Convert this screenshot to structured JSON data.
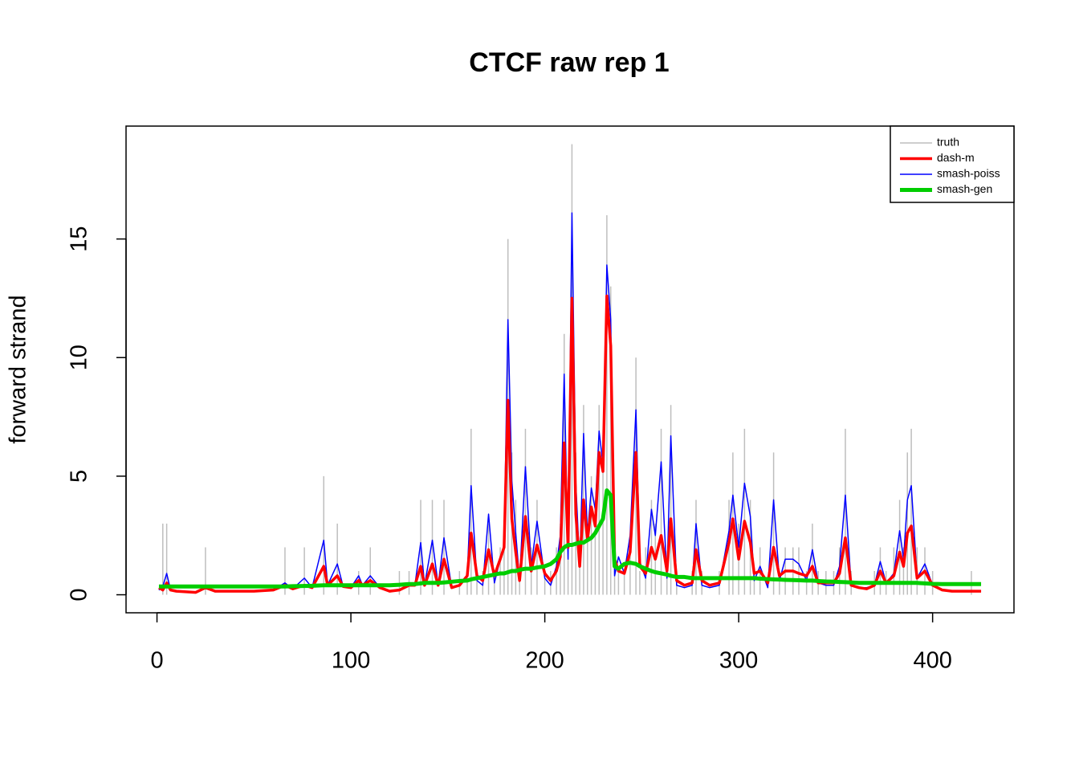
{
  "chart_data": {
    "type": "line",
    "title": "CTCF raw rep 1",
    "y_label": "forward strand",
    "x": [
      1,
      3,
      5,
      7,
      10,
      20,
      25,
      30,
      40,
      50,
      60,
      66,
      70,
      76,
      80,
      86,
      88,
      93,
      96,
      100,
      104,
      106,
      110,
      115,
      120,
      125,
      130,
      133,
      136,
      138,
      142,
      145,
      148,
      152,
      156,
      160,
      162,
      165,
      168,
      171,
      174,
      177,
      179,
      181,
      183,
      185,
      187,
      190,
      193,
      196,
      200,
      203,
      206,
      208,
      210,
      212,
      214,
      216,
      218,
      220,
      222,
      224,
      226,
      228,
      230,
      232,
      234,
      236,
      238,
      241,
      244,
      247,
      249,
      252,
      255,
      257,
      260,
      263,
      265,
      268,
      272,
      276,
      278,
      281,
      285,
      290,
      295,
      297,
      300,
      303,
      306,
      308,
      311,
      315,
      318,
      321,
      324,
      328,
      331,
      335,
      338,
      341,
      345,
      349,
      352,
      355,
      358,
      362,
      366,
      370,
      373,
      376,
      380,
      383,
      385,
      387,
      389,
      392,
      396,
      400,
      405,
      410,
      415,
      420,
      425
    ],
    "series": [
      {
        "name": "truth",
        "color": "#bebebe",
        "plot_type": "h",
        "values": [
          0,
          3,
          3,
          0,
          0,
          0,
          2,
          0,
          0,
          0,
          0,
          2,
          0,
          2,
          0,
          5,
          0,
          3,
          0,
          0,
          1,
          0,
          2,
          0,
          0,
          1,
          1,
          0,
          4,
          0,
          4,
          0,
          4,
          0,
          1,
          1,
          7,
          1,
          1,
          3,
          1,
          2,
          3,
          15,
          6,
          4,
          1,
          7,
          2,
          4,
          1,
          1,
          2,
          3,
          11,
          3,
          19,
          6,
          2,
          8,
          3,
          5,
          4,
          8,
          6,
          16,
          13,
          1,
          1,
          1,
          2,
          10,
          1,
          2,
          4,
          3,
          7,
          1,
          8,
          1,
          0,
          1,
          4,
          1,
          0,
          1,
          4,
          6,
          3,
          7,
          4,
          1,
          2,
          0,
          6,
          1,
          2,
          2,
          2,
          1,
          3,
          1,
          1,
          1,
          2,
          7,
          1,
          0,
          0,
          1,
          2,
          1,
          2,
          4,
          2,
          6,
          7,
          2,
          2,
          1,
          0,
          0,
          0,
          1,
          0
        ]
      },
      {
        "name": "dash-m",
        "color": "#ff0000",
        "plot_type": "l",
        "values": [
          0.3,
          0.2,
          0.5,
          0.2,
          0.15,
          0.1,
          0.3,
          0.15,
          0.15,
          0.15,
          0.2,
          0.4,
          0.25,
          0.4,
          0.3,
          1.2,
          0.4,
          0.8,
          0.35,
          0.3,
          0.6,
          0.4,
          0.6,
          0.3,
          0.15,
          0.2,
          0.4,
          0.4,
          1.2,
          0.4,
          1.3,
          0.4,
          1.5,
          0.3,
          0.4,
          0.8,
          2.6,
          0.8,
          0.6,
          1.9,
          0.8,
          1.5,
          2.0,
          8.2,
          3.2,
          1.8,
          0.6,
          3.3,
          1.0,
          2.1,
          0.9,
          0.6,
          1.0,
          1.6,
          6.4,
          2.0,
          12.5,
          3.4,
          1.2,
          4.0,
          2.3,
          3.7,
          2.9,
          6.0,
          5.2,
          12.6,
          10.5,
          1.5,
          1.0,
          0.9,
          1.8,
          6.0,
          1.2,
          0.9,
          2.0,
          1.5,
          2.5,
          1.0,
          3.2,
          0.6,
          0.4,
          0.5,
          1.9,
          0.6,
          0.4,
          0.5,
          2.2,
          3.2,
          1.5,
          3.1,
          2.2,
          0.9,
          1.0,
          0.5,
          2.0,
          0.8,
          1.0,
          1.0,
          0.9,
          0.8,
          1.2,
          0.5,
          0.5,
          0.5,
          0.9,
          2.4,
          0.4,
          0.3,
          0.25,
          0.4,
          1.0,
          0.5,
          0.8,
          1.8,
          1.2,
          2.6,
          2.9,
          0.7,
          1.0,
          0.4,
          0.2,
          0.15,
          0.15,
          0.15,
          0.15
        ]
      },
      {
        "name": "smash-poiss",
        "color": "#0000ff",
        "plot_type": "l",
        "values": [
          0.2,
          0.35,
          0.9,
          0.2,
          0.15,
          0.1,
          0.3,
          0.15,
          0.15,
          0.15,
          0.2,
          0.5,
          0.25,
          0.7,
          0.3,
          2.3,
          0.4,
          1.3,
          0.35,
          0.3,
          0.8,
          0.4,
          0.8,
          0.3,
          0.15,
          0.2,
          0.4,
          0.4,
          2.2,
          0.4,
          2.3,
          0.4,
          2.4,
          0.3,
          0.4,
          0.8,
          4.6,
          0.6,
          0.4,
          3.4,
          0.5,
          1.5,
          2.0,
          11.6,
          4.8,
          2.6,
          0.6,
          5.4,
          1.2,
          3.1,
          0.7,
          0.4,
          1.2,
          2.5,
          9.3,
          1.5,
          16.1,
          4.7,
          1.2,
          6.8,
          2.5,
          4.5,
          3.6,
          6.9,
          5.5,
          13.9,
          11.6,
          0.8,
          1.6,
          0.9,
          2.5,
          7.8,
          1.4,
          0.7,
          3.6,
          2.5,
          5.6,
          0.7,
          6.7,
          0.4,
          0.3,
          0.4,
          3.0,
          0.4,
          0.3,
          0.4,
          2.7,
          4.2,
          2.0,
          4.7,
          3.3,
          0.6,
          1.2,
          0.3,
          4.0,
          0.6,
          1.5,
          1.5,
          1.3,
          0.6,
          1.9,
          0.5,
          0.4,
          0.4,
          1.2,
          4.2,
          0.4,
          0.3,
          0.3,
          0.4,
          1.4,
          0.5,
          0.9,
          2.7,
          1.5,
          4.0,
          4.6,
          0.7,
          1.3,
          0.4,
          0.2,
          0.15,
          0.15,
          0.15,
          0.15
        ]
      },
      {
        "name": "smash-gen",
        "color": "#00cd00",
        "plot_type": "l",
        "values": [
          0.35,
          0.35,
          0.35,
          0.35,
          0.35,
          0.35,
          0.35,
          0.35,
          0.35,
          0.35,
          0.35,
          0.35,
          0.36,
          0.37,
          0.38,
          0.4,
          0.4,
          0.4,
          0.4,
          0.4,
          0.4,
          0.4,
          0.4,
          0.4,
          0.4,
          0.42,
          0.45,
          0.45,
          0.48,
          0.5,
          0.5,
          0.5,
          0.52,
          0.55,
          0.58,
          0.6,
          0.65,
          0.7,
          0.75,
          0.8,
          0.85,
          0.9,
          0.9,
          0.95,
          1.0,
          1.0,
          1.05,
          1.1,
          1.1,
          1.15,
          1.2,
          1.3,
          1.5,
          1.8,
          2.0,
          2.1,
          2.1,
          2.15,
          2.2,
          2.2,
          2.3,
          2.4,
          2.6,
          2.9,
          3.2,
          4.4,
          4.2,
          1.2,
          1.1,
          1.3,
          1.35,
          1.3,
          1.2,
          1.1,
          1.0,
          0.95,
          0.9,
          0.85,
          0.8,
          0.75,
          0.75,
          0.7,
          0.7,
          0.7,
          0.7,
          0.7,
          0.7,
          0.7,
          0.7,
          0.7,
          0.7,
          0.7,
          0.68,
          0.66,
          0.65,
          0.64,
          0.63,
          0.62,
          0.61,
          0.6,
          0.6,
          0.58,
          0.56,
          0.55,
          0.54,
          0.53,
          0.52,
          0.5,
          0.5,
          0.5,
          0.5,
          0.5,
          0.5,
          0.5,
          0.5,
          0.5,
          0.5,
          0.5,
          0.48,
          0.46,
          0.45,
          0.45,
          0.45,
          0.45,
          0.45
        ]
      }
    ],
    "xlim": [
      -15.96,
      441.96
    ],
    "xticks": [
      0,
      100,
      200,
      300,
      400
    ],
    "ylim": [
      -0.76,
      19.76
    ],
    "yticks": [
      0,
      5,
      10,
      15
    ],
    "legend": "top-right"
  }
}
